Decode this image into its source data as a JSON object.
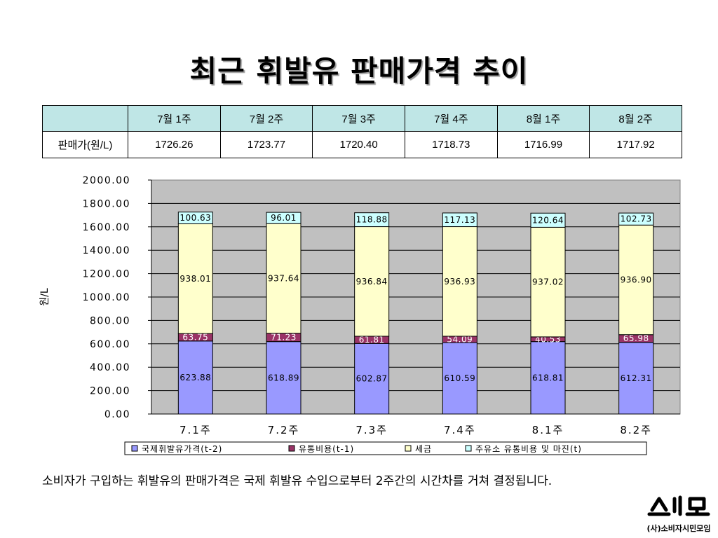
{
  "title": "최근 휘발유 판매가격 추이",
  "table": {
    "headers": [
      "",
      "7월 1주",
      "7월 2주",
      "7월 3주",
      "7월 4주",
      "8월 1주",
      "8월 2주"
    ],
    "row_label": "판매가(원/L)",
    "values": [
      "1726.26",
      "1723.77",
      "1720.40",
      "1718.73",
      "1716.99",
      "1717.92"
    ]
  },
  "chart_data": {
    "type": "bar",
    "stacked": true,
    "categories": [
      "7.1주",
      "7.2주",
      "7.3주",
      "7.4주",
      "8.1주",
      "8.2주"
    ],
    "ylabel": "원/L",
    "ylim": [
      0,
      2000
    ],
    "yticks": [
      "0.00",
      "200.00",
      "400.00",
      "600.00",
      "800.00",
      "1000.00",
      "1200.00",
      "1400.00",
      "1600.00",
      "1800.00",
      "2000.00"
    ],
    "grid": true,
    "legend_position": "bottom",
    "series": [
      {
        "name": "국제휘발유가격(t-2)",
        "color": "#9999ff",
        "values": [
          623.88,
          618.89,
          602.87,
          610.59,
          618.81,
          612.31
        ],
        "labels": [
          "623.88",
          "618.89",
          "602.87",
          "610.59",
          "618.81",
          "612.31"
        ]
      },
      {
        "name": "유통비용(t-1)",
        "color": "#993366",
        "values": [
          63.75,
          71.23,
          61.81,
          54.09,
          40.53,
          65.98
        ],
        "labels": [
          "63.75",
          "71.23",
          "61.81",
          "54.09",
          "40.53",
          "65.98"
        ]
      },
      {
        "name": "세금",
        "color": "#ffffcc",
        "values": [
          938.01,
          937.64,
          936.84,
          936.93,
          937.02,
          936.9
        ],
        "labels": [
          "938.01",
          "937.64",
          "936.84",
          "936.93",
          "937.02",
          "936.90"
        ]
      },
      {
        "name": "주유소 유통비용 및 마진(t)",
        "color": "#ccffff",
        "values": [
          100.63,
          96.01,
          118.88,
          117.13,
          120.64,
          102.73
        ],
        "labels": [
          "100.63",
          "96.01",
          "118.88",
          "117.13",
          "120.64",
          "102.73"
        ]
      }
    ]
  },
  "caption": "소비자가 구입하는 휘발유의 판매가격은 국제 휘발유 수입으로부터 2주간의 시간차를 거쳐 결정됩니다.",
  "logo": {
    "name": "consumer-association-logo",
    "text": "소시모",
    "subtext": "(사)소비자시민모임"
  }
}
